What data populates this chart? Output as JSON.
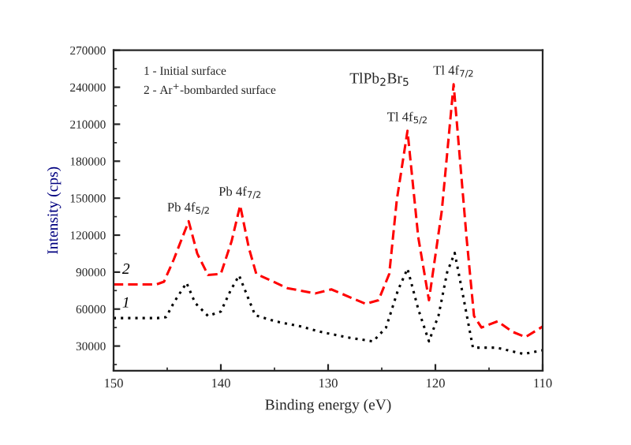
{
  "chart_data": {
    "type": "line",
    "title": "TlPb$_{2}$Br$_{5}$",
    "xlabel": "Binding energy (eV)",
    "ylabel": "Intensity (cps)",
    "xlim": [
      150,
      110
    ],
    "xticks": [
      150,
      140,
      130,
      120,
      110
    ],
    "ylim": [
      10000,
      270000
    ],
    "yticks": [
      30000,
      60000,
      90000,
      120000,
      150000,
      180000,
      210000,
      240000,
      270000
    ],
    "grid": false,
    "legend": false,
    "series": [
      {
        "name": "1",
        "color": "#000000",
        "line_style": "dotted",
        "x": [
          150,
          145.9,
          145.1,
          144.4,
          143.2,
          142.4,
          141.2,
          140.0,
          139.1,
          138.3,
          137.5,
          136.8,
          134.9,
          132.6,
          130.7,
          128.2,
          125.8,
          124.6,
          123.5,
          122.6,
          121.6,
          120.6,
          119.7,
          118.9,
          118.2,
          117.4,
          116.5,
          114.3,
          111.8,
          110.0
        ],
        "values": [
          52700,
          52700,
          53500,
          65000,
          81300,
          65000,
          54400,
          58000,
          75000,
          87300,
          70000,
          55000,
          50000,
          46000,
          41500,
          37000,
          33800,
          45000,
          75000,
          92800,
          60000,
          33800,
          55000,
          90000,
          105600,
          70000,
          28700,
          28700,
          23600,
          26500
        ]
      },
      {
        "name": "2",
        "color": "#ff0000",
        "line_style": "dashed",
        "x": [
          150,
          146,
          145.3,
          144.4,
          143.0,
          142.2,
          141.2,
          140.0,
          139.0,
          138.2,
          137.4,
          136.7,
          133.8,
          131.2,
          129.7,
          126.5,
          125.3,
          124.3,
          123.6,
          122.6,
          121.6,
          120.6,
          119.4,
          118.3,
          117.1,
          116.4,
          115.7,
          114.2,
          112.8,
          111.6,
          110.0
        ],
        "values": [
          80000,
          80000,
          82200,
          100000,
          131300,
          105000,
          87700,
          88600,
          115000,
          144100,
          110000,
          88600,
          77000,
          72700,
          76000,
          64200,
          67200,
          88600,
          148300,
          204700,
          118500,
          67200,
          139900,
          242400,
          118500,
          54400,
          45000,
          50100,
          41500,
          37300,
          45800
        ]
      }
    ],
    "annotations": [
      "1 - Initial surface",
      "2 - Ar$^{+}$-bombarded surface",
      {
        "text": "Pb 4f$_{5/2}$",
        "x": 143.0,
        "y": 131300
      },
      {
        "text": "Pb 4f$_{7/2}$",
        "x": 138.2,
        "y": 144100
      },
      {
        "text": "Tl 4f$_{5/2}$",
        "x": 122.6,
        "y": 204700
      },
      {
        "text": "Tl 4f$_{7/2}$",
        "x": 118.3,
        "y": 242400
      }
    ]
  }
}
